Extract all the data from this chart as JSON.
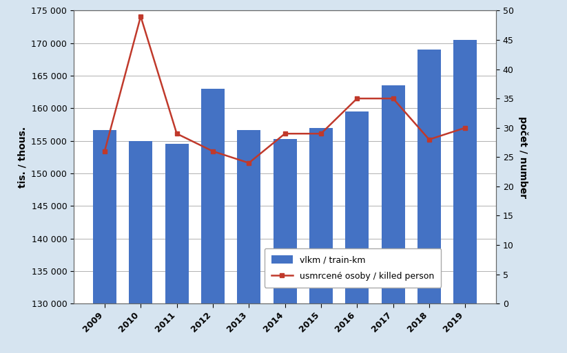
{
  "years": [
    2009,
    2010,
    2011,
    2012,
    2013,
    2014,
    2015,
    2016,
    2017,
    2018,
    2019
  ],
  "train_km": [
    156700,
    155000,
    154500,
    163000,
    156700,
    155300,
    157000,
    159500,
    163500,
    169000,
    170500
  ],
  "killed": [
    26,
    49,
    29,
    26,
    24,
    29,
    29,
    35,
    35,
    28,
    30
  ],
  "bar_color": "#4472c4",
  "line_color": "#c0392b",
  "background_color": "#d6e4f0",
  "plot_background": "#ffffff",
  "ylabel_left": "tis. / thous.",
  "ylabel_right": "počet / number",
  "ylim_left": [
    130000,
    175000
  ],
  "ylim_right": [
    0,
    50
  ],
  "yticks_left": [
    130000,
    135000,
    140000,
    145000,
    150000,
    155000,
    160000,
    165000,
    170000,
    175000
  ],
  "yticks_right": [
    0,
    5,
    10,
    15,
    20,
    25,
    30,
    35,
    40,
    45,
    50
  ],
  "legend_labels": [
    "vlkm / train-km",
    "usmrcené osoby / killed person"
  ],
  "grid_color": "#b0b0b0",
  "line_width": 1.8,
  "marker": "s",
  "marker_size": 5,
  "bar_width": 0.65,
  "font_size_ticks": 9,
  "font_size_label": 10
}
